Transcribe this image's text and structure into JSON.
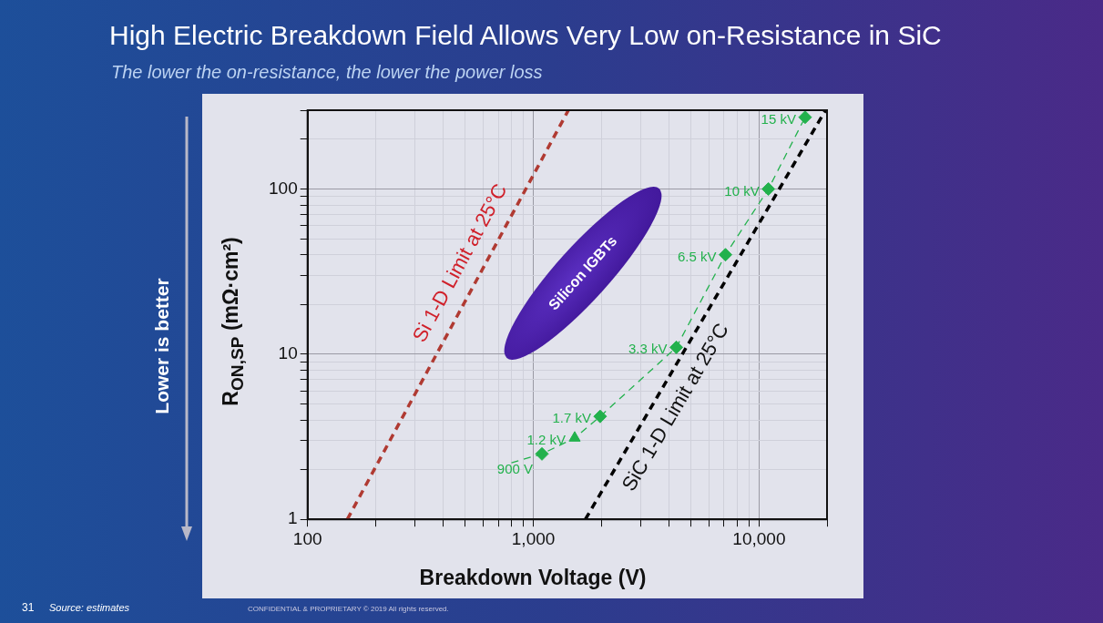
{
  "chart_data": {
    "type": "scatter",
    "title": "High Electric Breakdown Field Allows Very Low on-Resistance in SiC",
    "subtitle": "The lower the on-resistance, the lower the power loss",
    "xlabel": "Breakdown Voltage (V)",
    "ylabel": "R$_{ON,SP}$ (mΩ·cm²)",
    "log": "xy",
    "grid": true,
    "legend": false,
    "xlim": [
      100,
      20000
    ],
    "ylim": [
      1,
      300
    ],
    "xticks": [
      {
        "value": 100,
        "label": "100"
      },
      {
        "value": 200,
        "label": null
      },
      {
        "value": 300,
        "label": null
      },
      {
        "value": 400,
        "label": null
      },
      {
        "value": 500,
        "label": null
      },
      {
        "value": 600,
        "label": null
      },
      {
        "value": 700,
        "label": null
      },
      {
        "value": 800,
        "label": null
      },
      {
        "value": 900,
        "label": null
      },
      {
        "value": 1000,
        "label": "1,000"
      },
      {
        "value": 2000,
        "label": null
      },
      {
        "value": 3000,
        "label": null
      },
      {
        "value": 4000,
        "label": null
      },
      {
        "value": 5000,
        "label": null
      },
      {
        "value": 6000,
        "label": null
      },
      {
        "value": 7000,
        "label": null
      },
      {
        "value": 8000,
        "label": null
      },
      {
        "value": 9000,
        "label": null
      },
      {
        "value": 10000,
        "label": "10,000"
      },
      {
        "value": 20000,
        "label": null
      }
    ],
    "yticks": [
      1,
      {
        "value": 2,
        "label": null
      },
      {
        "value": 3,
        "label": null
      },
      {
        "value": 4,
        "label": null
      },
      {
        "value": 5,
        "label": null
      },
      {
        "value": 6,
        "label": null
      },
      {
        "value": 7,
        "label": null
      },
      {
        "value": 8,
        "label": null
      },
      {
        "value": 9,
        "label": null
      },
      10,
      {
        "value": 20,
        "label": null
      },
      {
        "value": 30,
        "label": null
      },
      {
        "value": 40,
        "label": null
      },
      {
        "value": 50,
        "label": null
      },
      {
        "value": 60,
        "label": null
      },
      {
        "value": 70,
        "label": null
      },
      {
        "value": 80,
        "label": null
      },
      {
        "value": 90,
        "label": null
      },
      100,
      {
        "value": 200,
        "label": null
      },
      {
        "value": 300,
        "label": null
      }
    ],
    "series": [
      {
        "name": "Si 1-D Limit at 25°C",
        "type": "line",
        "color": "#b03a32",
        "line_style": "dashed",
        "marker": "none",
        "x": [
          150,
          1430
        ],
        "values": [
          1,
          300
        ]
      },
      {
        "name": "SiC 1-D Limit at 25°C",
        "type": "line",
        "color": "#000000",
        "line_style": "dashed",
        "marker": "none",
        "x": [
          1700,
          19700
        ],
        "values": [
          1,
          300
        ]
      },
      {
        "type": "line",
        "color": "#22b14c",
        "line_style": "dashed",
        "marker": "none",
        "x": [
          800,
          1092,
          1525,
          1977,
          4300,
          7100,
          11000,
          16000
        ],
        "values": [
          2.2,
          2.49,
          3.11,
          4.2,
          11,
          40,
          100,
          272
        ]
      },
      {
        "type": "scatter",
        "color": "#22b14c",
        "marker": "diamond",
        "x": [
          1092,
          1977,
          4300,
          7100,
          11000,
          16000
        ],
        "values": [
          2.49,
          4.2,
          11,
          40,
          100,
          272
        ]
      },
      {
        "type": "scatter",
        "color": "#22b14c",
        "marker": "triangle",
        "x": [
          1525
        ],
        "values": [
          3.11
        ]
      }
    ],
    "annotations": [
      "Lower is better",
      "31",
      "Source: estimates",
      "CONFIDENTIAL & PROPRIETARY © 2019 All rights reserved.",
      "Silicon IGBTs",
      {
        "text": "900 V",
        "x": 1092,
        "y": 2.49
      },
      {
        "text": "1.2 kV",
        "x": 1525,
        "y": 3.11
      },
      {
        "text": "1.7 kV",
        "x": 1977,
        "y": 4.2
      },
      {
        "text": "3.3 kV",
        "x": 4300,
        "y": 11
      },
      {
        "text": "6.5 kV",
        "x": 7100,
        "y": 40
      },
      {
        "text": "10 kV",
        "x": 11000,
        "y": 100
      },
      {
        "text": "15 kV",
        "x": 16000,
        "y": 272
      }
    ]
  }
}
